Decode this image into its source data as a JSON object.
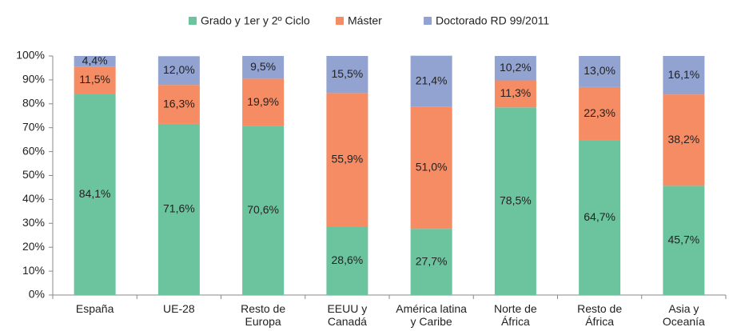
{
  "chart_data": {
    "type": "stacked_bar",
    "categories": [
      "España",
      "UE-28",
      "Resto de\nEuropa",
      "EEUU y\nCanadá",
      "América latina\ny Caribe",
      "Norte de\nÁfrica",
      "Resto de\nÁfrica",
      "Asia y\nOceanía"
    ],
    "series": [
      {
        "name": "Grado y 1er y 2º Ciclo",
        "color": "#6cc49f",
        "values": [
          84.1,
          71.6,
          70.6,
          28.6,
          27.7,
          78.5,
          64.7,
          45.7
        ],
        "value_labels": [
          "84,1%",
          "71,6%",
          "70,6%",
          "28,6%",
          "27,7%",
          "78,5%",
          "64,7%",
          "45,7%"
        ]
      },
      {
        "name": "Máster",
        "color": "#f58c63",
        "values": [
          11.5,
          16.3,
          19.9,
          55.9,
          51.0,
          11.3,
          22.3,
          38.2
        ],
        "value_labels": [
          "11,5%",
          "16,3%",
          "19,9%",
          "55,9%",
          "51,0%",
          "11,3%",
          "22,3%",
          "38,2%"
        ]
      },
      {
        "name": "Doctorado RD 99/2011",
        "color": "#92a3d2",
        "values": [
          4.4,
          12.0,
          9.5,
          15.5,
          21.4,
          10.2,
          13.0,
          16.1
        ],
        "value_labels": [
          "4,4%",
          "12,0%",
          "9,5%",
          "15,5%",
          "21,4%",
          "10,2%",
          "13,0%",
          "16,1%"
        ]
      }
    ],
    "ylim": [
      0,
      100
    ],
    "yticks": [
      {
        "value": 0,
        "label": "0%"
      },
      {
        "value": 10,
        "label": "10%"
      },
      {
        "value": 20,
        "label": "20%"
      },
      {
        "value": 30,
        "label": "30%"
      },
      {
        "value": 40,
        "label": "40%"
      },
      {
        "value": 50,
        "label": "50%"
      },
      {
        "value": 60,
        "label": "60%"
      },
      {
        "value": 70,
        "label": "70%"
      },
      {
        "value": 80,
        "label": "80%"
      },
      {
        "value": 90,
        "label": "90%"
      },
      {
        "value": 100,
        "label": "100%"
      }
    ],
    "grid": false,
    "legend": "top"
  }
}
